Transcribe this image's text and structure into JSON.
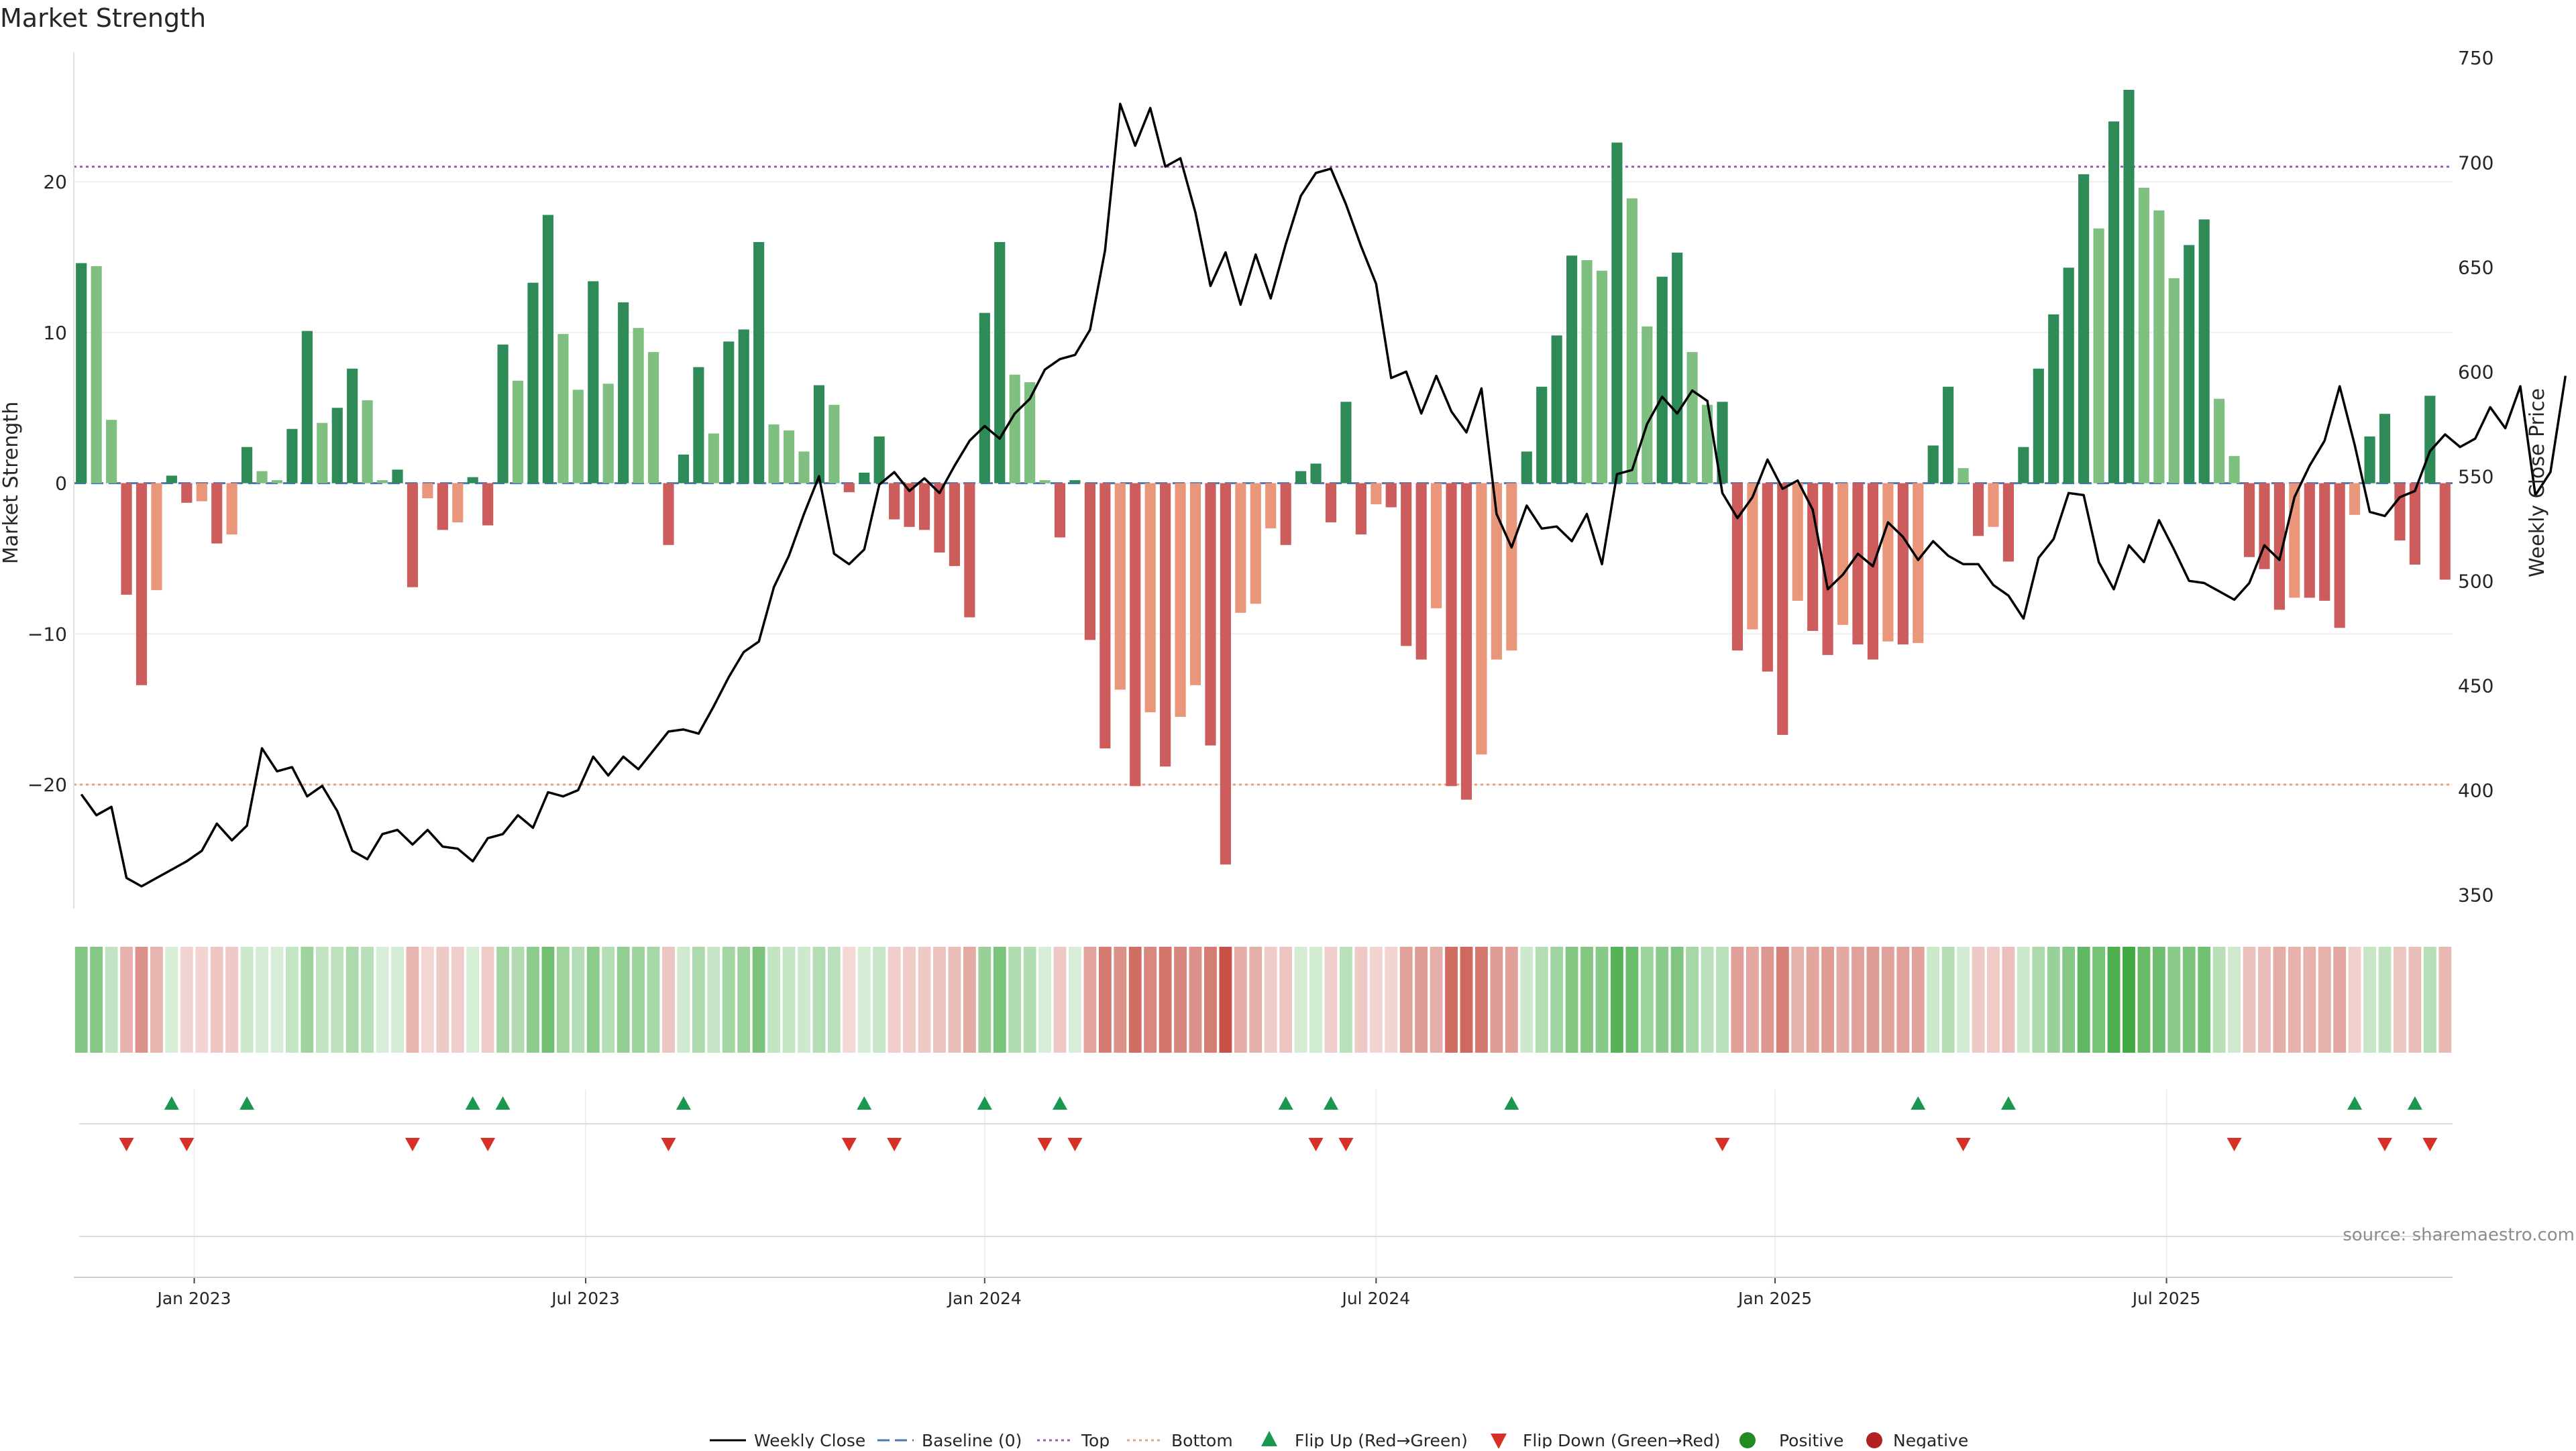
{
  "chart_data": {
    "type": "bar",
    "title": "Market Strength",
    "ylabel_left": "Market Strength",
    "ylabel_right": "Weekly Close Price",
    "ylim_left": [
      -28,
      28.5
    ],
    "ylim_right": [
      345,
      752
    ],
    "yticks_left": [
      20,
      10,
      0,
      -10,
      -20
    ],
    "yticks_right": [
      750,
      700,
      650,
      600,
      550,
      500,
      450,
      400,
      350
    ],
    "x_ticks": [
      "Jan 2023",
      "Jul 2023",
      "Jan 2024",
      "Jul 2024",
      "Jan 2025",
      "Jul 2025"
    ],
    "x_tick_week_index": [
      7.5,
      33.5,
      60,
      86,
      112.5,
      138.5
    ],
    "top_line": 21,
    "bottom_line": -20,
    "source": "source: sharemaestro.com",
    "legend": {
      "weekly_close": "Weekly Close",
      "baseline": "Baseline (0)",
      "top": "Top",
      "bottom": "Bottom",
      "flip_up": "Flip Up (Red→Green)",
      "flip_down": "Flip Down (Green→Red)",
      "positive": "Positive",
      "negative": "Negative"
    },
    "colors": {
      "strong_green": "#2e8b57",
      "light_green": "#7fbf7f",
      "strong_red": "#cd5c5c",
      "light_red": "#e9967a",
      "close_line": "#000000",
      "top_line": "#9b59b6",
      "bottom_line": "#e8a27c",
      "baseline": "#4a77b4",
      "flip_up": "#1a9850",
      "flip_down": "#d73027",
      "positive_dot": "#228b22",
      "negative_dot": "#b22222"
    },
    "strength": [
      14.6,
      14.4,
      4.2,
      -7.4,
      -13.4,
      -7.1,
      0.5,
      -1.3,
      -1.2,
      -4.0,
      -3.4,
      2.4,
      0.8,
      0.2,
      3.6,
      10.1,
      4.0,
      5.0,
      7.6,
      5.5,
      0.2,
      0.9,
      -6.9,
      -1.0,
      -3.1,
      -2.6,
      0.4,
      -2.8,
      9.2,
      6.8,
      13.3,
      17.8,
      9.9,
      6.2,
      13.4,
      6.6,
      12.0,
      10.3,
      8.7,
      -4.1,
      1.9,
      7.7,
      3.3,
      9.4,
      10.2,
      16.0,
      3.9,
      3.5,
      2.1,
      6.5,
      5.2,
      -0.6,
      0.7,
      3.1,
      -2.4,
      -2.9,
      -3.1,
      -4.6,
      -5.5,
      -8.9,
      11.3,
      16.0,
      7.2,
      6.7,
      0.2,
      -3.6,
      0.2,
      -10.4,
      -17.6,
      -13.7,
      -20.1,
      -15.2,
      -18.8,
      -15.5,
      -13.4,
      -17.4,
      -25.3,
      -8.6,
      -8.0,
      -3.0,
      -4.1,
      0.8,
      1.3,
      -2.6,
      5.4,
      -3.4,
      -1.4,
      -1.6,
      -10.8,
      -11.7,
      -8.3,
      -20.1,
      -21.0,
      -18.0,
      -11.7,
      -11.1,
      2.1,
      6.4,
      9.8,
      15.1,
      14.8,
      14.1,
      22.6,
      18.9,
      10.4,
      13.7,
      15.3,
      8.7,
      5.2,
      5.4,
      -11.1,
      -9.7,
      -12.5,
      -16.7,
      -7.8,
      -9.8,
      -11.4,
      -9.4,
      -10.7,
      -11.7,
      -10.5,
      -10.7,
      -10.6,
      2.5,
      6.4,
      1.0,
      -3.5,
      -2.9,
      -5.2,
      2.4,
      7.6,
      11.2,
      14.3,
      20.5,
      16.9,
      24.0,
      26.1,
      19.6,
      18.1,
      13.6,
      15.8,
      17.5,
      5.6,
      1.8,
      -4.9,
      -5.7,
      -8.4,
      -7.6,
      -7.6,
      -7.8,
      -9.6,
      -2.1,
      3.1,
      4.6,
      -3.8,
      -5.4,
      5.8,
      -6.4
    ],
    "close": [
      398,
      388,
      392,
      358,
      354,
      358,
      362,
      366,
      371,
      384,
      376,
      383,
      420,
      409,
      411,
      397,
      402,
      390,
      371,
      367,
      379,
      381,
      374,
      381,
      373,
      372,
      366,
      377,
      379,
      388,
      382,
      399,
      397,
      400,
      416,
      407,
      416,
      410,
      419,
      428,
      429,
      427,
      440,
      454,
      466,
      471,
      497,
      512,
      532,
      550,
      513,
      508,
      515,
      546,
      552,
      543,
      549,
      542,
      555,
      567,
      574,
      568,
      580,
      587,
      601,
      606,
      608,
      620,
      658,
      728,
      708,
      726,
      698,
      702,
      676,
      641,
      657,
      632,
      656,
      635,
      661,
      684,
      695,
      697,
      680,
      660,
      642,
      597,
      600,
      580,
      598,
      581,
      571,
      592,
      532,
      516,
      536,
      525,
      526,
      519,
      532,
      508,
      551,
      553,
      575,
      588,
      580,
      591,
      586,
      542,
      530,
      540,
      558,
      544,
      548,
      534,
      496,
      503,
      513,
      507,
      528,
      521,
      510,
      519,
      512,
      508,
      508,
      498,
      493,
      482,
      511,
      520,
      542,
      541,
      509,
      496,
      517,
      509,
      529,
      515,
      500,
      499,
      495,
      491,
      499,
      517,
      510,
      540,
      555,
      567,
      593,
      565,
      533,
      531,
      540,
      543,
      562,
      570,
      564,
      568,
      583,
      573,
      593,
      541,
      552,
      598
    ],
    "flip_up_weeks": [
      6,
      11,
      26,
      28,
      40,
      52,
      60,
      65,
      80,
      83,
      95,
      122,
      128,
      151,
      155
    ],
    "flip_down_weeks": [
      3,
      7,
      22,
      27,
      39,
      51,
      54,
      64,
      66,
      82,
      84,
      109,
      125,
      143,
      153,
      156
    ]
  }
}
